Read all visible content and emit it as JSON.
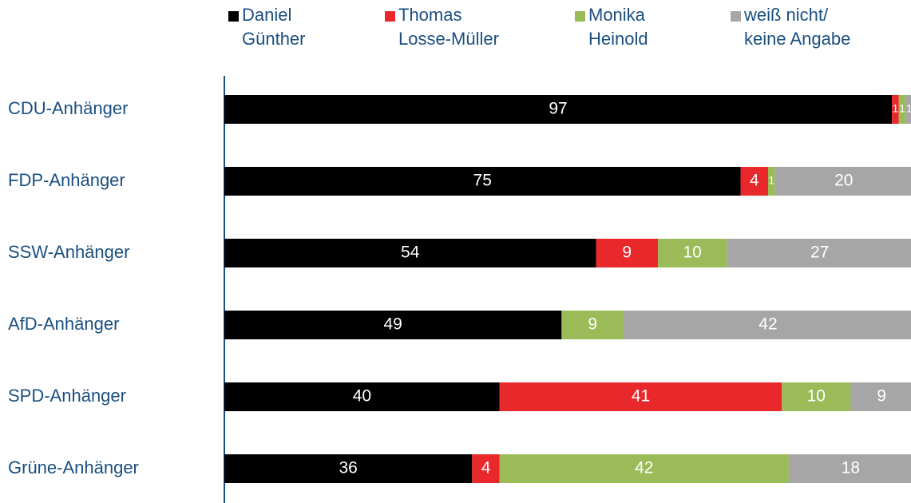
{
  "chart_data": {
    "type": "stacked-bar-horizontal",
    "categories": [
      "CDU-Anhänger",
      "FDP-Anhänger",
      "SSW-Anhänger",
      "AfD-Anhänger",
      "SPD-Anhänger",
      "Grüne-Anhänger"
    ],
    "series": [
      {
        "name": "Daniel\nGünther",
        "color": "#000000",
        "values": [
          97,
          75,
          54,
          49,
          40,
          36
        ]
      },
      {
        "name": "Thomas\nLosse-Müller",
        "color": "#e8282b",
        "values": [
          1,
          4,
          9,
          null,
          41,
          4
        ]
      },
      {
        "name": "Monika\nHeinold",
        "color": "#9bbb59",
        "values": [
          1,
          1,
          10,
          9,
          10,
          42
        ]
      },
      {
        "name": "weiß nicht/\nkeine Angabe",
        "color": "#a6a6a6",
        "values": [
          1,
          20,
          27,
          42,
          9,
          18
        ]
      }
    ],
    "xlim": [
      0,
      100
    ]
  }
}
